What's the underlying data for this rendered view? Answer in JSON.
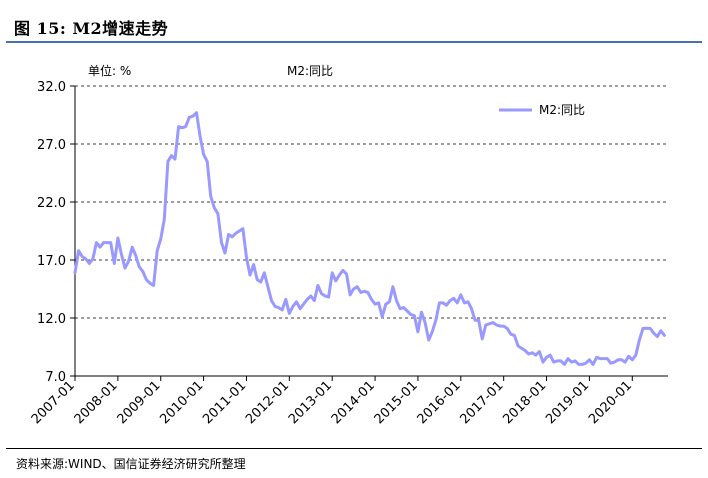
{
  "header": {
    "title": "图 15: M2增速走势"
  },
  "footer": {
    "source": "资料来源:WIND、国信证券经济研究所整理"
  },
  "chart_data": {
    "type": "line",
    "unit_label": "单位: %",
    "series_title": "M2:同比",
    "legend_position": "top-right",
    "grid": "horizontal-dashed",
    "ylim": [
      7.0,
      32.0
    ],
    "y_ticks": [
      "32.0",
      "27.0",
      "22.0",
      "17.0",
      "12.0",
      "7.0"
    ],
    "x_range": [
      "2007-01",
      "2020-09"
    ],
    "x_ticks": [
      "2007-01",
      "2008-01",
      "2009-01",
      "2010-01",
      "2011-01",
      "2012-01",
      "2013-01",
      "2014-01",
      "2015-01",
      "2016-01",
      "2017-01",
      "2018-01",
      "2019-01",
      "2020-01"
    ],
    "series_color": "#9999ff",
    "series": [
      {
        "name": "M2:同比",
        "points": [
          [
            "2007-01",
            15.9
          ],
          [
            "2007-02",
            17.8
          ],
          [
            "2007-03",
            17.3
          ],
          [
            "2007-04",
            17.1
          ],
          [
            "2007-05",
            16.7
          ],
          [
            "2007-06",
            17.1
          ],
          [
            "2007-07",
            18.5
          ],
          [
            "2007-08",
            18.1
          ],
          [
            "2007-09",
            18.5
          ],
          [
            "2007-10",
            18.5
          ],
          [
            "2007-11",
            18.5
          ],
          [
            "2007-12",
            16.7
          ],
          [
            "2008-01",
            18.9
          ],
          [
            "2008-02",
            17.5
          ],
          [
            "2008-03",
            16.3
          ],
          [
            "2008-04",
            16.9
          ],
          [
            "2008-05",
            18.1
          ],
          [
            "2008-06",
            17.4
          ],
          [
            "2008-07",
            16.4
          ],
          [
            "2008-08",
            16.0
          ],
          [
            "2008-09",
            15.3
          ],
          [
            "2008-10",
            15.0
          ],
          [
            "2008-11",
            14.8
          ],
          [
            "2008-12",
            17.8
          ],
          [
            "2009-01",
            18.8
          ],
          [
            "2009-02",
            20.5
          ],
          [
            "2009-03",
            25.5
          ],
          [
            "2009-04",
            26.0
          ],
          [
            "2009-05",
            25.7
          ],
          [
            "2009-06",
            28.5
          ],
          [
            "2009-07",
            28.4
          ],
          [
            "2009-08",
            28.5
          ],
          [
            "2009-09",
            29.3
          ],
          [
            "2009-10",
            29.4
          ],
          [
            "2009-11",
            29.7
          ],
          [
            "2009-12",
            27.7
          ],
          [
            "2010-01",
            26.1
          ],
          [
            "2010-02",
            25.5
          ],
          [
            "2010-03",
            22.5
          ],
          [
            "2010-04",
            21.5
          ],
          [
            "2010-05",
            21.0
          ],
          [
            "2010-06",
            18.5
          ],
          [
            "2010-07",
            17.6
          ],
          [
            "2010-08",
            19.2
          ],
          [
            "2010-09",
            19.0
          ],
          [
            "2010-10",
            19.3
          ],
          [
            "2010-11",
            19.5
          ],
          [
            "2010-12",
            19.7
          ],
          [
            "2011-01",
            17.2
          ],
          [
            "2011-02",
            15.7
          ],
          [
            "2011-03",
            16.6
          ],
          [
            "2011-04",
            15.3
          ],
          [
            "2011-05",
            15.1
          ],
          [
            "2011-06",
            15.9
          ],
          [
            "2011-07",
            14.7
          ],
          [
            "2011-08",
            13.5
          ],
          [
            "2011-09",
            13.0
          ],
          [
            "2011-10",
            12.9
          ],
          [
            "2011-11",
            12.7
          ],
          [
            "2011-12",
            13.6
          ],
          [
            "2012-01",
            12.4
          ],
          [
            "2012-02",
            13.0
          ],
          [
            "2012-03",
            13.4
          ],
          [
            "2012-04",
            12.8
          ],
          [
            "2012-05",
            13.2
          ],
          [
            "2012-06",
            13.6
          ],
          [
            "2012-07",
            13.9
          ],
          [
            "2012-08",
            13.5
          ],
          [
            "2012-09",
            14.8
          ],
          [
            "2012-10",
            14.1
          ],
          [
            "2012-11",
            13.9
          ],
          [
            "2012-12",
            13.8
          ],
          [
            "2013-01",
            15.9
          ],
          [
            "2013-02",
            15.2
          ],
          [
            "2013-03",
            15.7
          ],
          [
            "2013-04",
            16.1
          ],
          [
            "2013-05",
            15.8
          ],
          [
            "2013-06",
            14.0
          ],
          [
            "2013-07",
            14.5
          ],
          [
            "2013-08",
            14.7
          ],
          [
            "2013-09",
            14.2
          ],
          [
            "2013-10",
            14.3
          ],
          [
            "2013-11",
            14.2
          ],
          [
            "2013-12",
            13.6
          ],
          [
            "2014-01",
            13.2
          ],
          [
            "2014-02",
            13.3
          ],
          [
            "2014-03",
            12.1
          ],
          [
            "2014-04",
            13.2
          ],
          [
            "2014-05",
            13.4
          ],
          [
            "2014-06",
            14.7
          ],
          [
            "2014-07",
            13.5
          ],
          [
            "2014-08",
            12.8
          ],
          [
            "2014-09",
            12.9
          ],
          [
            "2014-10",
            12.6
          ],
          [
            "2014-11",
            12.3
          ],
          [
            "2014-12",
            12.2
          ],
          [
            "2015-01",
            10.8
          ],
          [
            "2015-02",
            12.5
          ],
          [
            "2015-03",
            11.6
          ],
          [
            "2015-04",
            10.1
          ],
          [
            "2015-05",
            10.8
          ],
          [
            "2015-06",
            11.8
          ],
          [
            "2015-07",
            13.3
          ],
          [
            "2015-08",
            13.3
          ],
          [
            "2015-09",
            13.1
          ],
          [
            "2015-10",
            13.5
          ],
          [
            "2015-11",
            13.7
          ],
          [
            "2015-12",
            13.3
          ],
          [
            "2016-01",
            14.0
          ],
          [
            "2016-02",
            13.3
          ],
          [
            "2016-03",
            13.4
          ],
          [
            "2016-04",
            12.8
          ],
          [
            "2016-05",
            11.8
          ],
          [
            "2016-06",
            11.8
          ],
          [
            "2016-07",
            10.2
          ],
          [
            "2016-08",
            11.4
          ],
          [
            "2016-09",
            11.5
          ],
          [
            "2016-10",
            11.6
          ],
          [
            "2016-11",
            11.4
          ],
          [
            "2016-12",
            11.3
          ],
          [
            "2017-01",
            11.3
          ],
          [
            "2017-02",
            11.1
          ],
          [
            "2017-03",
            10.6
          ],
          [
            "2017-04",
            10.5
          ],
          [
            "2017-05",
            9.6
          ],
          [
            "2017-06",
            9.4
          ],
          [
            "2017-07",
            9.2
          ],
          [
            "2017-08",
            8.9
          ],
          [
            "2017-09",
            9.0
          ],
          [
            "2017-10",
            8.8
          ],
          [
            "2017-11",
            9.1
          ],
          [
            "2017-12",
            8.2
          ],
          [
            "2018-01",
            8.6
          ],
          [
            "2018-02",
            8.8
          ],
          [
            "2018-03",
            8.2
          ],
          [
            "2018-04",
            8.3
          ],
          [
            "2018-05",
            8.3
          ],
          [
            "2018-06",
            8.0
          ],
          [
            "2018-07",
            8.5
          ],
          [
            "2018-08",
            8.2
          ],
          [
            "2018-09",
            8.3
          ],
          [
            "2018-10",
            8.0
          ],
          [
            "2018-11",
            8.0
          ],
          [
            "2018-12",
            8.1
          ],
          [
            "2019-01",
            8.4
          ],
          [
            "2019-02",
            8.0
          ],
          [
            "2019-03",
            8.6
          ],
          [
            "2019-04",
            8.5
          ],
          [
            "2019-05",
            8.5
          ],
          [
            "2019-06",
            8.5
          ],
          [
            "2019-07",
            8.1
          ],
          [
            "2019-08",
            8.2
          ],
          [
            "2019-09",
            8.4
          ],
          [
            "2019-10",
            8.4
          ],
          [
            "2019-11",
            8.2
          ],
          [
            "2019-12",
            8.7
          ],
          [
            "2020-01",
            8.4
          ],
          [
            "2020-02",
            8.8
          ],
          [
            "2020-03",
            10.1
          ],
          [
            "2020-04",
            11.1
          ],
          [
            "2020-05",
            11.1
          ],
          [
            "2020-06",
            11.1
          ],
          [
            "2020-07",
            10.7
          ],
          [
            "2020-08",
            10.4
          ],
          [
            "2020-09",
            10.9
          ],
          [
            "2020-10",
            10.5
          ]
        ]
      }
    ]
  }
}
